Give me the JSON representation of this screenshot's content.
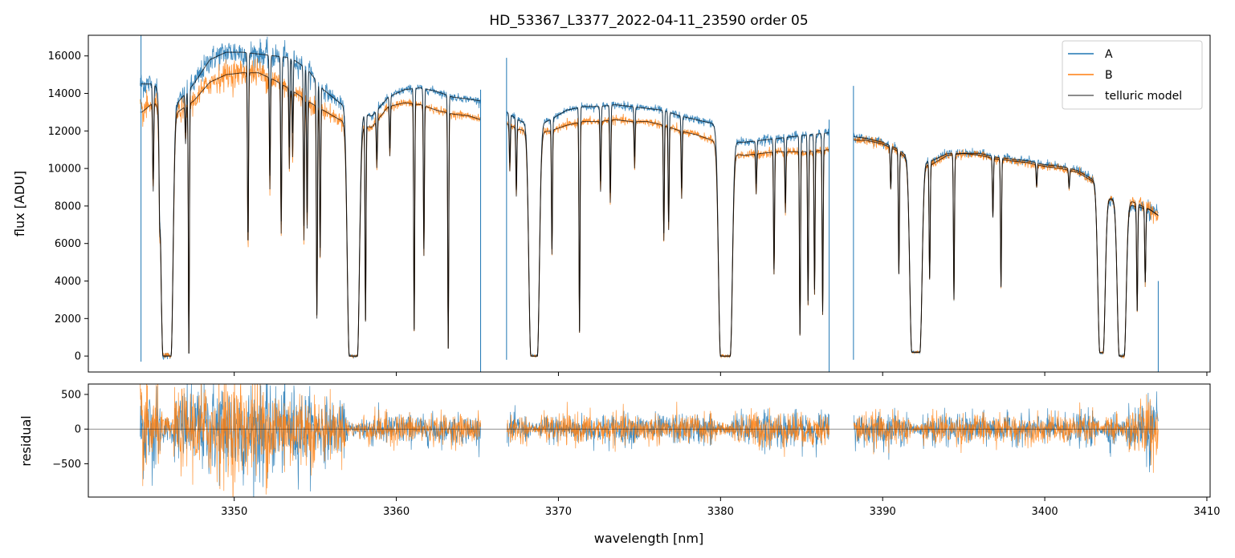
{
  "chart_data": [
    {
      "panel": "top",
      "type": "line",
      "title": "HD_53367_L3377_2022-04-11_23590  order 05",
      "xlabel": "",
      "ylabel": "flux [ADU]",
      "xlim": [
        3341.0,
        3410.2
      ],
      "ylim": [
        -850,
        17100
      ],
      "yticks": [
        0,
        2000,
        4000,
        6000,
        8000,
        10000,
        12000,
        14000,
        16000
      ],
      "xticks": [
        3350,
        3360,
        3370,
        3380,
        3390,
        3400,
        3410
      ],
      "legend": {
        "placement": "top-right",
        "entries": [
          "A",
          "B",
          "telluric model"
        ]
      },
      "continuum": {
        "x": [
          3344.3,
          3345.0,
          3346.5,
          3347.5,
          3348.5,
          3349.5,
          3350.5,
          3351.5,
          3352.5,
          3353.5,
          3354.5,
          3355.5,
          3356.5,
          3357.5,
          3358.5,
          3359.5,
          3360.5,
          3361.5,
          3362.5,
          3363.5,
          3364.5,
          3365.2,
          3366.8,
          3367.5,
          3368.5,
          3369.5,
          3370.5,
          3371.5,
          3372.5,
          3373.5,
          3374.5,
          3375.5,
          3376.5,
          3377.5,
          3378.5,
          3379.5,
          3380.5,
          3381.5,
          3382.5,
          3383.5,
          3384.5,
          3385.5,
          3386.7,
          3388.2,
          3389.0,
          3390.0,
          3391.0,
          3392.0,
          3393.0,
          3394.0,
          3395.0,
          3396.0,
          3397.0,
          3398.0,
          3399.0,
          3400.0,
          3401.0,
          3402.0,
          3403.0,
          3404.0,
          3405.0,
          3405.5,
          3406.0,
          3406.5,
          3407.0
        ],
        "A": [
          14500,
          14500,
          13500,
          14500,
          15800,
          16200,
          16200,
          16100,
          16000,
          15900,
          15300,
          14200,
          13500,
          13000,
          12800,
          13800,
          14200,
          14300,
          14100,
          13800,
          13700,
          13600,
          13000,
          12600,
          12200,
          12600,
          13100,
          13300,
          13300,
          13400,
          13300,
          13200,
          13100,
          12800,
          12600,
          12400,
          11400,
          11400,
          11500,
          11600,
          11700,
          11800,
          11900,
          11700,
          11600,
          11400,
          11000,
          10300,
          10400,
          10800,
          10800,
          10800,
          10600,
          10500,
          10400,
          10200,
          10100,
          9900,
          9400,
          8400,
          8100,
          8000,
          7900,
          7800,
          7500
        ],
        "B": [
          13000,
          13500,
          13000,
          13600,
          14600,
          15000,
          15100,
          15100,
          14700,
          14200,
          13600,
          13100,
          12600,
          12300,
          12200,
          13300,
          13500,
          13400,
          13100,
          12900,
          12800,
          12600,
          12400,
          12100,
          11900,
          12000,
          12300,
          12500,
          12500,
          12600,
          12500,
          12500,
          12300,
          12000,
          11800,
          11500,
          10800,
          10700,
          10800,
          10900,
          10900,
          10900,
          11000,
          11500,
          11500,
          11300,
          10900,
          10100,
          10200,
          10700,
          10800,
          10700,
          10500,
          10400,
          10300,
          10100,
          10000,
          9800,
          9300,
          8400,
          8300,
          8200,
          8000,
          7800,
          7500
        ]
      },
      "broad_absorptions": [
        {
          "x0": 3345.6,
          "x1": 3346.1,
          "depth": 1.0
        },
        {
          "x0": 3357.1,
          "x1": 3357.6,
          "depth": 1.0
        },
        {
          "x0": 3368.3,
          "x1": 3368.7,
          "depth": 1.0
        },
        {
          "x0": 3380.0,
          "x1": 3380.6,
          "depth": 1.0
        },
        {
          "x0": 3391.8,
          "x1": 3392.3,
          "depth": 0.98
        },
        {
          "x0": 3403.4,
          "x1": 3403.6,
          "depth": 0.98
        },
        {
          "x0": 3404.6,
          "x1": 3404.9,
          "depth": 1.0
        }
      ],
      "sharp_lines": [
        {
          "x": 3345.0,
          "depth": 0.35
        },
        {
          "x": 3345.4,
          "depth": 0.3
        },
        {
          "x": 3347.0,
          "depth": 0.15
        },
        {
          "x": 3347.2,
          "depth": 0.99
        },
        {
          "x": 3350.85,
          "depth": 0.62
        },
        {
          "x": 3352.2,
          "depth": 0.4
        },
        {
          "x": 3352.9,
          "depth": 0.55
        },
        {
          "x": 3353.4,
          "depth": 0.3
        },
        {
          "x": 3353.6,
          "depth": 0.25
        },
        {
          "x": 3354.3,
          "depth": 0.55
        },
        {
          "x": 3354.5,
          "depth": 0.5
        },
        {
          "x": 3355.1,
          "depth": 0.85
        },
        {
          "x": 3355.3,
          "depth": 0.6
        },
        {
          "x": 3358.1,
          "depth": 0.85
        },
        {
          "x": 3358.8,
          "depth": 0.2
        },
        {
          "x": 3359.6,
          "depth": 0.2
        },
        {
          "x": 3361.1,
          "depth": 0.9
        },
        {
          "x": 3361.7,
          "depth": 0.6
        },
        {
          "x": 3363.2,
          "depth": 0.97
        },
        {
          "x": 3367.0,
          "depth": 0.2
        },
        {
          "x": 3367.4,
          "depth": 0.3
        },
        {
          "x": 3369.6,
          "depth": 0.55
        },
        {
          "x": 3371.3,
          "depth": 0.9
        },
        {
          "x": 3372.6,
          "depth": 0.3
        },
        {
          "x": 3373.2,
          "depth": 0.35
        },
        {
          "x": 3374.7,
          "depth": 0.2
        },
        {
          "x": 3376.5,
          "depth": 0.5
        },
        {
          "x": 3376.8,
          "depth": 0.45
        },
        {
          "x": 3377.6,
          "depth": 0.3
        },
        {
          "x": 3382.2,
          "depth": 0.2
        },
        {
          "x": 3383.3,
          "depth": 0.6
        },
        {
          "x": 3384.0,
          "depth": 0.3
        },
        {
          "x": 3384.9,
          "depth": 0.9
        },
        {
          "x": 3385.4,
          "depth": 0.75
        },
        {
          "x": 3385.8,
          "depth": 0.7
        },
        {
          "x": 3386.3,
          "depth": 0.8
        },
        {
          "x": 3390.5,
          "depth": 0.2
        },
        {
          "x": 3391.0,
          "depth": 0.6
        },
        {
          "x": 3392.9,
          "depth": 0.6
        },
        {
          "x": 3394.4,
          "depth": 0.72
        },
        {
          "x": 3396.8,
          "depth": 0.3
        },
        {
          "x": 3397.3,
          "depth": 0.65
        },
        {
          "x": 3399.5,
          "depth": 0.12
        },
        {
          "x": 3401.5,
          "depth": 0.1
        },
        {
          "x": 3405.7,
          "depth": 0.7
        },
        {
          "x": 3406.2,
          "depth": 0.5
        }
      ]
    },
    {
      "panel": "bottom",
      "type": "line",
      "xlabel": "wavelength [nm]",
      "ylabel": "residual",
      "xlim": [
        3341.0,
        3410.2
      ],
      "ylim": [
        -980,
        650
      ],
      "yticks": [
        -500,
        0,
        500
      ],
      "xticks": [
        3350,
        3360,
        3370,
        3380,
        3390,
        3400,
        3410
      ],
      "zero_line": 0,
      "segments": [
        [
          3344.2,
          3365.2
        ],
        [
          3366.8,
          3386.7
        ],
        [
          3388.2,
          3407.0
        ]
      ],
      "noise_sd": {
        "x": [
          3344.5,
          3346.0,
          3348.0,
          3350.0,
          3352.0,
          3354.0,
          3356.0,
          3358.0,
          3362.0,
          3365.0,
          3367.0,
          3375.0,
          3380.0,
          3382.0,
          3386.0,
          3389.0,
          3395.0,
          3400.0,
          3404.0,
          3406.0,
          3407.0
        ],
        "sd": [
          350,
          260,
          330,
          380,
          360,
          300,
          200,
          120,
          110,
          100,
          110,
          110,
          110,
          140,
          130,
          120,
          110,
          100,
          130,
          230,
          260
        ]
      }
    }
  ],
  "colors": {
    "A": "#1f77b4",
    "B": "#ff7f0e",
    "model": "#000000",
    "zero_line": "#000000"
  }
}
